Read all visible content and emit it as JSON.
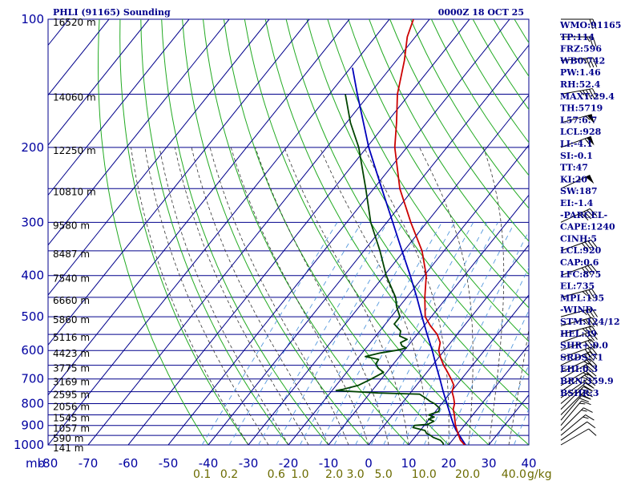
{
  "chart_data": {
    "type": "skew-t",
    "title_left": "PHLI (91165) Sounding",
    "title_right": "0000Z 18 OCT 25",
    "pressure_ticks": [
      "100",
      "200",
      "300",
      "400",
      "500",
      "600",
      "700",
      "800",
      "900",
      "1000"
    ],
    "temperature_ticks": [
      "-80",
      "-70",
      "-60",
      "-50",
      "-40",
      "-30",
      "-20",
      "-10",
      "0",
      "10",
      "20",
      "30",
      "40"
    ],
    "pressure_unit": "mb",
    "mixing_ratio_unit": "g/kg",
    "mixing_ratio_labels": [
      {
        "text": "0.1",
        "value": 0.1
      },
      {
        "text": "0.2",
        "value": 0.2
      },
      {
        "text": "0.6",
        "value": 0.6
      },
      {
        "text": "1.0",
        "value": 1.0
      },
      {
        "text": "2.0",
        "value": 2.0
      },
      {
        "text": "3.0",
        "value": 3.0
      },
      {
        "text": "5.0",
        "value": 5.0
      },
      {
        "text": "10.0",
        "value": 10.0
      },
      {
        "text": "20.0",
        "value": 20.0
      },
      {
        "text": "40.0",
        "value": 40.0
      }
    ],
    "height_labels": [
      {
        "p": 100,
        "text": "16520 m"
      },
      {
        "p": 150,
        "text": "14060 m"
      },
      {
        "p": 200,
        "text": "12250 m"
      },
      {
        "p": 250,
        "text": "10810 m"
      },
      {
        "p": 300,
        "text": "9580 m"
      },
      {
        "p": 350,
        "text": "8487 m"
      },
      {
        "p": 400,
        "text": "7540 m"
      },
      {
        "p": 450,
        "text": "6660 m"
      },
      {
        "p": 500,
        "text": "5860 m"
      },
      {
        "p": 550,
        "text": "5116 m"
      },
      {
        "p": 600,
        "text": "4423 m"
      },
      {
        "p": 650,
        "text": "3775 m"
      },
      {
        "p": 700,
        "text": "3169 m"
      },
      {
        "p": 750,
        "text": "2595 m"
      },
      {
        "p": 800,
        "text": "2056 m"
      },
      {
        "p": 850,
        "text": "1545 m"
      },
      {
        "p": 900,
        "text": "1057 m"
      },
      {
        "p": 950,
        "text": "590 m"
      },
      {
        "p": 1000,
        "text": "141 m"
      }
    ],
    "temperature_profile": [
      [
        1006,
        24.6
      ],
      [
        1000,
        24.0
      ],
      [
        975,
        22.0
      ],
      [
        950,
        20.6
      ],
      [
        925,
        19.2
      ],
      [
        900,
        17.8
      ],
      [
        875,
        16.6
      ],
      [
        850,
        15.4
      ],
      [
        825,
        14.0
      ],
      [
        800,
        13.2
      ],
      [
        775,
        11.8
      ],
      [
        750,
        10.2
      ],
      [
        725,
        9.4
      ],
      [
        700,
        7.4
      ],
      [
        675,
        5.2
      ],
      [
        650,
        2.8
      ],
      [
        625,
        0.6
      ],
      [
        600,
        -1.4
      ],
      [
        575,
        -2.6
      ],
      [
        550,
        -5.0
      ],
      [
        525,
        -8.4
      ],
      [
        500,
        -11.5
      ],
      [
        450,
        -15.5
      ],
      [
        400,
        -19.5
      ],
      [
        350,
        -25.5
      ],
      [
        300,
        -34.0
      ],
      [
        250,
        -43.5
      ],
      [
        200,
        -53.0
      ],
      [
        175,
        -57.5
      ],
      [
        150,
        -63.0
      ],
      [
        125,
        -68.0
      ],
      [
        110,
        -72.0
      ],
      [
        100,
        -74.0
      ]
    ],
    "dewpoint_profile": [
      [
        1006,
        19.0
      ],
      [
        990,
        18.2
      ],
      [
        975,
        17.0
      ],
      [
        960,
        14.6
      ],
      [
        950,
        13.6
      ],
      [
        940,
        12.2
      ],
      [
        925,
        11.2
      ],
      [
        910,
        7.6
      ],
      [
        900,
        7.6
      ],
      [
        895,
        10.6
      ],
      [
        880,
        11.6
      ],
      [
        870,
        9.8
      ],
      [
        860,
        10.8
      ],
      [
        850,
        9.0
      ],
      [
        835,
        10.8
      ],
      [
        820,
        10.4
      ],
      [
        800,
        8.2
      ],
      [
        790,
        6.6
      ],
      [
        780,
        5.4
      ],
      [
        770,
        4.0
      ],
      [
        760,
        2.6
      ],
      [
        755,
        -8.0
      ],
      [
        745,
        -19.0
      ],
      [
        740,
        -17.5
      ],
      [
        725,
        -14.5
      ],
      [
        700,
        -12.5
      ],
      [
        675,
        -10.8
      ],
      [
        660,
        -13.0
      ],
      [
        645,
        -14.4
      ],
      [
        630,
        -14.6
      ],
      [
        620,
        -18.5
      ],
      [
        608,
        -15.5
      ],
      [
        600,
        -12.2
      ],
      [
        592,
        -10.0
      ],
      [
        585,
        -11.5
      ],
      [
        575,
        -12.5
      ],
      [
        565,
        -11.5
      ],
      [
        555,
        -14.0
      ],
      [
        540,
        -14.8
      ],
      [
        520,
        -17.8
      ],
      [
        500,
        -17.8
      ],
      [
        475,
        -20.5
      ],
      [
        450,
        -22.8
      ],
      [
        400,
        -29.5
      ],
      [
        350,
        -36.0
      ],
      [
        300,
        -44.0
      ],
      [
        250,
        -52.0
      ],
      [
        200,
        -62.0
      ],
      [
        175,
        -69.0
      ],
      [
        150,
        -76.0
      ]
    ],
    "parcel_profile": [
      [
        1006,
        24.6
      ],
      [
        950,
        20.8
      ],
      [
        925,
        19.0
      ],
      [
        900,
        17.4
      ],
      [
        875,
        15.9
      ],
      [
        850,
        14.4
      ],
      [
        800,
        11.3
      ],
      [
        750,
        8.0
      ],
      [
        700,
        4.6
      ],
      [
        650,
        0.9
      ],
      [
        600,
        -3.0
      ],
      [
        550,
        -7.5
      ],
      [
        500,
        -12.3
      ],
      [
        450,
        -17.5
      ],
      [
        400,
        -23.5
      ],
      [
        350,
        -30.5
      ],
      [
        300,
        -38.5
      ],
      [
        250,
        -48.0
      ],
      [
        200,
        -59.5
      ],
      [
        150,
        -73.0
      ],
      [
        130,
        -79.5
      ]
    ],
    "wind_barbs": [
      {
        "p": 1000,
        "dir": 240,
        "spd": 10
      },
      {
        "p": 975,
        "dir": 235,
        "spd": 10
      },
      {
        "p": 950,
        "dir": 230,
        "spd": 15
      },
      {
        "p": 925,
        "dir": 225,
        "spd": 15
      },
      {
        "p": 900,
        "dir": 220,
        "spd": 15
      },
      {
        "p": 875,
        "dir": 220,
        "spd": 20
      },
      {
        "p": 850,
        "dir": 225,
        "spd": 20
      },
      {
        "p": 825,
        "dir": 225,
        "spd": 20
      },
      {
        "p": 800,
        "dir": 230,
        "spd": 20
      },
      {
        "p": 775,
        "dir": 235,
        "spd": 20
      },
      {
        "p": 750,
        "dir": 235,
        "spd": 25
      },
      {
        "p": 725,
        "dir": 240,
        "spd": 25
      },
      {
        "p": 700,
        "dir": 240,
        "spd": 25
      },
      {
        "p": 675,
        "dir": 245,
        "spd": 25
      },
      {
        "p": 650,
        "dir": 245,
        "spd": 30
      },
      {
        "p": 625,
        "dir": 250,
        "spd": 30
      },
      {
        "p": 600,
        "dir": 250,
        "spd": 30
      },
      {
        "p": 575,
        "dir": 250,
        "spd": 30
      },
      {
        "p": 550,
        "dir": 255,
        "spd": 35
      },
      {
        "p": 525,
        "dir": 255,
        "spd": 35
      },
      {
        "p": 500,
        "dir": 255,
        "spd": 35
      },
      {
        "p": 450,
        "dir": 255,
        "spd": 35
      },
      {
        "p": 400,
        "dir": 250,
        "spd": 40
      },
      {
        "p": 350,
        "dir": 250,
        "spd": 40
      },
      {
        "p": 300,
        "dir": 245,
        "spd": 45
      },
      {
        "p": 250,
        "dir": 245,
        "spd": 50
      },
      {
        "p": 200,
        "dir": 250,
        "spd": 60
      },
      {
        "p": 175,
        "dir": 255,
        "spd": 55
      },
      {
        "p": 150,
        "dir": 260,
        "spd": 45
      },
      {
        "p": 125,
        "dir": 265,
        "spd": 35
      },
      {
        "p": 110,
        "dir": 270,
        "spd": 25
      },
      {
        "p": 100,
        "dir": 270,
        "spd": 20
      }
    ],
    "indices": [
      "WMO:91165",
      "TP:114",
      "FRZ:596",
      "WB0:742",
      "PW:1.46",
      "RH:52.4",
      "MAXT:29.4",
      "TH:5719",
      "L57:6.7",
      "LCL:928",
      "LI:-4.1",
      "SI:-0.1",
      "TT:47",
      "KI:20",
      "SW:187",
      "EI:-1.4",
      "-PARCEL-",
      "CAPE:1240",
      "CINH:5",
      "LCL:920",
      "CAP:0.6",
      "LFC:875",
      "EL:735",
      "MPL:135",
      "-WIND-",
      "STM:124/12",
      "HEL:39",
      "SHR+:0.0",
      "SRDS:71",
      "EHI:0.3",
      "BRN:359.9",
      "BSHR:3"
    ],
    "axes": {
      "x_range_at_1000mb": [
        -80,
        40
      ],
      "pressure_range": [
        100,
        1000
      ],
      "grid": true,
      "legend": "none"
    },
    "colors": {
      "background": "#ffffff",
      "isobar_isotherm_grid": "#00008b",
      "dry_adiabat": "#22aa22",
      "moist_adiabat": "#333333",
      "mixing_ratio": "#5599dd",
      "temperature": "#cc0000",
      "dewpoint": "#004400",
      "parcel": "#0000bb",
      "wind_barb": "#000000",
      "text": "#00008b",
      "mixing_ratio_text": "#6b6b00"
    }
  }
}
